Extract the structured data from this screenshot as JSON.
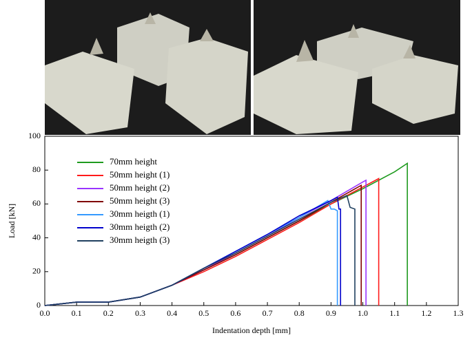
{
  "chart_data": {
    "type": "line",
    "xlabel": "Indentation depth [mm]",
    "ylabel": "Load [kN]",
    "xlim": [
      0,
      1.3
    ],
    "ylim": [
      0,
      100
    ],
    "xticks": [
      {
        "value": 0,
        "label": "0.0"
      },
      0.1,
      0.2,
      0.3,
      0.4,
      0.5,
      0.6,
      0.7,
      0.8,
      0.9,
      {
        "value": 1,
        "label": "1.0"
      },
      1.1,
      1.2,
      1.3
    ],
    "yticks": [
      0,
      20,
      40,
      60,
      80,
      100
    ],
    "legend": "upper left",
    "series": [
      {
        "name": "70mm height",
        "color": "#1e9a1e",
        "x": [
          0,
          0.05,
          0.1,
          0.2,
          0.3,
          0.4,
          0.5,
          0.6,
          0.7,
          0.8,
          0.9,
          1.0,
          1.1,
          1.14,
          1.14
        ],
        "values": [
          0,
          1,
          2,
          2,
          5,
          12,
          21,
          30,
          40,
          50,
          60,
          69,
          79,
          84,
          0
        ]
      },
      {
        "name": "50mm height (1)",
        "color": "#ff1a1a",
        "x": [
          0,
          0.05,
          0.1,
          0.2,
          0.3,
          0.4,
          0.5,
          0.6,
          0.7,
          0.8,
          0.9,
          1.0,
          1.05,
          1.05
        ],
        "values": [
          0,
          1,
          2,
          2,
          5,
          12,
          20,
          29,
          39,
          49,
          60,
          70,
          75,
          0
        ]
      },
      {
        "name": "50mm height (2)",
        "color": "#9933ff",
        "x": [
          0,
          0.05,
          0.1,
          0.2,
          0.3,
          0.4,
          0.5,
          0.6,
          0.7,
          0.8,
          0.9,
          1.0,
          1.01,
          1.01
        ],
        "values": [
          0,
          1,
          2,
          2,
          5,
          12,
          21,
          31,
          41,
          52,
          62,
          73,
          74,
          0
        ]
      },
      {
        "name": "50mm height (3)",
        "color": "#800000",
        "x": [
          0,
          0.05,
          0.1,
          0.2,
          0.3,
          0.4,
          0.5,
          0.6,
          0.7,
          0.8,
          0.9,
          0.995,
          0.995
        ],
        "values": [
          0,
          1,
          2,
          2,
          5,
          12,
          21,
          30,
          40,
          50,
          61,
          71,
          0
        ]
      },
      {
        "name": "30mm heigth (1)",
        "color": "#3399ff",
        "x": [
          0,
          0.05,
          0.1,
          0.2,
          0.3,
          0.4,
          0.5,
          0.6,
          0.7,
          0.8,
          0.89,
          0.9,
          0.91,
          0.92,
          0.92
        ],
        "values": [
          0,
          1,
          2,
          2,
          5,
          12,
          22,
          32,
          42,
          52,
          62,
          57,
          57,
          56,
          0
        ]
      },
      {
        "name": "30mm heigth (2)",
        "color": "#0000cc",
        "x": [
          0,
          0.05,
          0.1,
          0.2,
          0.3,
          0.4,
          0.5,
          0.6,
          0.7,
          0.8,
          0.9,
          0.92,
          0.925,
          0.93,
          0.93
        ],
        "values": [
          0,
          1,
          2,
          2,
          5,
          12,
          22,
          32,
          42,
          53,
          62,
          64,
          57,
          57,
          0
        ]
      },
      {
        "name": "30mm heigth (3)",
        "color": "#1f3f5f",
        "x": [
          0,
          0.05,
          0.1,
          0.2,
          0.3,
          0.4,
          0.5,
          0.6,
          0.7,
          0.8,
          0.9,
          0.95,
          0.96,
          0.975,
          0.975
        ],
        "values": [
          0,
          1,
          2,
          2,
          5,
          12,
          22,
          31,
          41,
          51,
          61,
          65,
          58,
          57,
          0
        ]
      }
    ]
  }
}
